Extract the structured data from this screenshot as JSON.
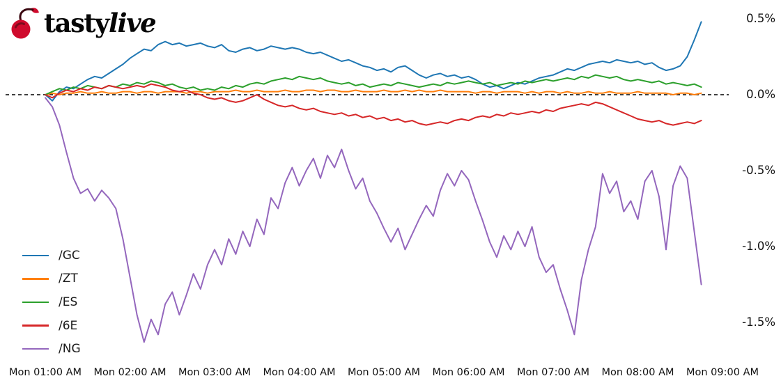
{
  "brand": {
    "tasty": "tasty",
    "live": "live",
    "icon": "cherry-icon"
  },
  "chart_data": {
    "type": "line",
    "title": "",
    "xlabel": "",
    "ylabel": "",
    "x_unit": "minutes since Mon 01:00 AM",
    "x_step_minutes": 5,
    "x_range_minutes": [
      0,
      480
    ],
    "ylim": [
      -1.75,
      0.62
    ],
    "grid": false,
    "legend_position": "lower left",
    "zero_line": {
      "value": 0.0,
      "style": "dashed",
      "color": "#000000"
    },
    "x_tick_labels": [
      "Mon 01:00 AM",
      "Mon 02:00 AM",
      "Mon 03:00 AM",
      "Mon 04:00 AM",
      "Mon 05:00 AM",
      "Mon 06:00 AM",
      "Mon 07:00 AM",
      "Mon 08:00 AM",
      "Mon 09:00 AM"
    ],
    "x_tick_minutes": [
      0,
      60,
      120,
      180,
      240,
      300,
      360,
      420,
      480
    ],
    "y_tick_labels": [
      "0.5%",
      "0.0%",
      "-0.5%",
      "-1.0%",
      "-1.5%"
    ],
    "y_tick_values": [
      0.5,
      0.0,
      -0.5,
      -1.0,
      -1.5
    ],
    "series": [
      {
        "name": "/GC",
        "color": "#1f77b4",
        "values": [
          0.0,
          -0.04,
          0.02,
          0.05,
          0.04,
          0.07,
          0.1,
          0.12,
          0.11,
          0.14,
          0.17,
          0.2,
          0.24,
          0.27,
          0.3,
          0.29,
          0.33,
          0.35,
          0.33,
          0.34,
          0.32,
          0.33,
          0.34,
          0.32,
          0.31,
          0.33,
          0.29,
          0.28,
          0.3,
          0.31,
          0.29,
          0.3,
          0.32,
          0.31,
          0.3,
          0.31,
          0.3,
          0.28,
          0.27,
          0.28,
          0.26,
          0.24,
          0.22,
          0.23,
          0.21,
          0.19,
          0.18,
          0.16,
          0.17,
          0.15,
          0.18,
          0.19,
          0.16,
          0.13,
          0.11,
          0.13,
          0.14,
          0.12,
          0.13,
          0.11,
          0.12,
          0.1,
          0.07,
          0.05,
          0.06,
          0.04,
          0.06,
          0.08,
          0.07,
          0.09,
          0.11,
          0.12,
          0.13,
          0.15,
          0.17,
          0.16,
          0.18,
          0.2,
          0.21,
          0.22,
          0.21,
          0.23,
          0.22,
          0.21,
          0.22,
          0.2,
          0.21,
          0.18,
          0.16,
          0.17,
          0.19,
          0.25,
          0.36,
          0.48
        ]
      },
      {
        "name": "/ZT",
        "color": "#ff7f0e",
        "values": [
          0.0,
          0.01,
          0.0,
          0.01,
          0.01,
          0.02,
          0.01,
          0.01,
          0.02,
          0.01,
          0.01,
          0.02,
          0.02,
          0.01,
          0.02,
          0.02,
          0.01,
          0.02,
          0.02,
          0.02,
          0.01,
          0.02,
          0.02,
          0.01,
          0.02,
          0.02,
          0.02,
          0.03,
          0.02,
          0.02,
          0.03,
          0.02,
          0.02,
          0.02,
          0.03,
          0.02,
          0.02,
          0.03,
          0.03,
          0.02,
          0.03,
          0.03,
          0.02,
          0.02,
          0.03,
          0.02,
          0.02,
          0.02,
          0.03,
          0.02,
          0.02,
          0.03,
          0.02,
          0.03,
          0.02,
          0.02,
          0.03,
          0.02,
          0.02,
          0.02,
          0.02,
          0.01,
          0.02,
          0.02,
          0.01,
          0.02,
          0.02,
          0.02,
          0.01,
          0.02,
          0.01,
          0.02,
          0.02,
          0.01,
          0.02,
          0.01,
          0.01,
          0.02,
          0.01,
          0.01,
          0.02,
          0.01,
          0.01,
          0.01,
          0.02,
          0.01,
          0.01,
          0.01,
          0.01,
          0.0,
          0.01,
          0.01,
          0.0,
          0.01
        ]
      },
      {
        "name": "/ES",
        "color": "#2ca02c",
        "values": [
          0.0,
          0.02,
          0.04,
          0.03,
          0.05,
          0.04,
          0.06,
          0.05,
          0.04,
          0.06,
          0.05,
          0.07,
          0.06,
          0.08,
          0.07,
          0.09,
          0.08,
          0.06,
          0.07,
          0.05,
          0.04,
          0.05,
          0.03,
          0.04,
          0.03,
          0.05,
          0.04,
          0.06,
          0.05,
          0.07,
          0.08,
          0.07,
          0.09,
          0.1,
          0.11,
          0.1,
          0.12,
          0.11,
          0.1,
          0.11,
          0.09,
          0.08,
          0.07,
          0.08,
          0.06,
          0.07,
          0.05,
          0.06,
          0.07,
          0.06,
          0.08,
          0.07,
          0.06,
          0.05,
          0.06,
          0.07,
          0.06,
          0.08,
          0.07,
          0.08,
          0.09,
          0.08,
          0.07,
          0.08,
          0.06,
          0.07,
          0.08,
          0.07,
          0.09,
          0.08,
          0.09,
          0.1,
          0.09,
          0.1,
          0.11,
          0.1,
          0.12,
          0.11,
          0.13,
          0.12,
          0.11,
          0.12,
          0.1,
          0.09,
          0.1,
          0.09,
          0.08,
          0.09,
          0.07,
          0.08,
          0.07,
          0.06,
          0.07,
          0.05
        ]
      },
      {
        "name": "/6E",
        "color": "#d62728",
        "values": [
          0.0,
          -0.02,
          0.01,
          0.03,
          0.02,
          0.04,
          0.03,
          0.05,
          0.04,
          0.06,
          0.05,
          0.04,
          0.05,
          0.06,
          0.05,
          0.07,
          0.06,
          0.05,
          0.03,
          0.02,
          0.03,
          0.01,
          0.0,
          -0.02,
          -0.03,
          -0.02,
          -0.04,
          -0.05,
          -0.04,
          -0.02,
          0.0,
          -0.03,
          -0.05,
          -0.07,
          -0.08,
          -0.07,
          -0.09,
          -0.1,
          -0.09,
          -0.11,
          -0.12,
          -0.13,
          -0.12,
          -0.14,
          -0.13,
          -0.15,
          -0.14,
          -0.16,
          -0.15,
          -0.17,
          -0.16,
          -0.18,
          -0.17,
          -0.19,
          -0.2,
          -0.19,
          -0.18,
          -0.19,
          -0.17,
          -0.16,
          -0.17,
          -0.15,
          -0.14,
          -0.15,
          -0.13,
          -0.14,
          -0.12,
          -0.13,
          -0.12,
          -0.11,
          -0.12,
          -0.1,
          -0.11,
          -0.09,
          -0.08,
          -0.07,
          -0.06,
          -0.07,
          -0.05,
          -0.06,
          -0.08,
          -0.1,
          -0.12,
          -0.14,
          -0.16,
          -0.17,
          -0.18,
          -0.17,
          -0.19,
          -0.2,
          -0.19,
          -0.18,
          -0.19,
          -0.17
        ]
      },
      {
        "name": "/NG",
        "color": "#9467bd",
        "values": [
          -0.02,
          -0.08,
          -0.2,
          -0.38,
          -0.55,
          -0.65,
          -0.62,
          -0.7,
          -0.63,
          -0.68,
          -0.75,
          -0.95,
          -1.2,
          -1.45,
          -1.63,
          -1.48,
          -1.58,
          -1.38,
          -1.3,
          -1.45,
          -1.32,
          -1.18,
          -1.28,
          -1.12,
          -1.02,
          -1.12,
          -0.95,
          -1.05,
          -0.9,
          -1.0,
          -0.82,
          -0.92,
          -0.68,
          -0.75,
          -0.58,
          -0.48,
          -0.6,
          -0.5,
          -0.42,
          -0.55,
          -0.4,
          -0.48,
          -0.36,
          -0.5,
          -0.62,
          -0.55,
          -0.7,
          -0.78,
          -0.88,
          -0.97,
          -0.88,
          -1.02,
          -0.92,
          -0.82,
          -0.73,
          -0.8,
          -0.63,
          -0.52,
          -0.6,
          -0.5,
          -0.56,
          -0.7,
          -0.83,
          -0.97,
          -1.07,
          -0.93,
          -1.02,
          -0.9,
          -1.0,
          -0.87,
          -1.07,
          -1.17,
          -1.12,
          -1.28,
          -1.42,
          -1.58,
          -1.22,
          -1.02,
          -0.87,
          -0.52,
          -0.65,
          -0.57,
          -0.77,
          -0.7,
          -0.82,
          -0.57,
          -0.5,
          -0.67,
          -1.02,
          -0.6,
          -0.47,
          -0.55,
          -0.9,
          -1.25
        ]
      }
    ]
  }
}
